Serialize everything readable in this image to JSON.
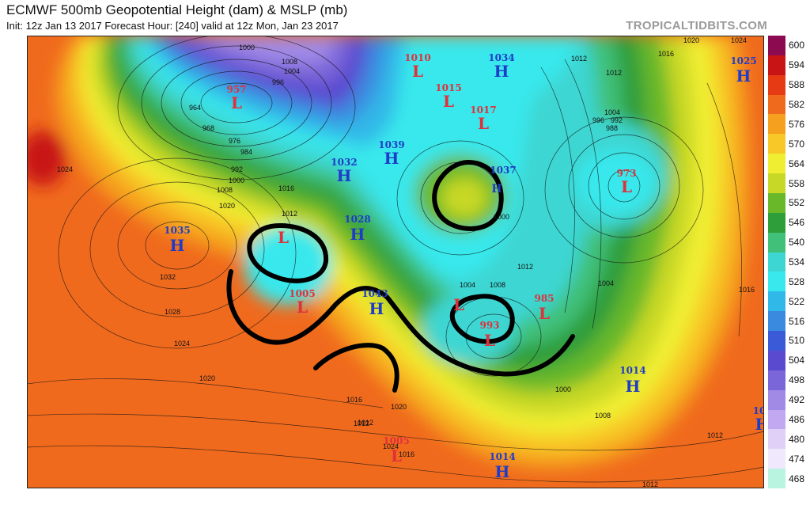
{
  "header": {
    "title": "ECMWF 500mb Geopotential Height (dam) & MSLP (mb)",
    "subtitle": "Init: 12z Jan 13 2017   Forecast Hour: [240]   valid at 12z Mon, Jan 23 2017",
    "brand": "TROPICALTIDBITS.COM"
  },
  "colorbar": {
    "levels": [
      "600",
      "594",
      "588",
      "582",
      "576",
      "570",
      "564",
      "558",
      "552",
      "546",
      "540",
      "534",
      "528",
      "522",
      "516",
      "510",
      "504",
      "498",
      "492",
      "486",
      "480",
      "474",
      "468"
    ],
    "colors": [
      "#8b0a50",
      "#c81414",
      "#e63a14",
      "#f06a1e",
      "#f5a01e",
      "#f8c828",
      "#f0ee32",
      "#c8d826",
      "#68b82a",
      "#2e9e3a",
      "#40c078",
      "#3ed6d2",
      "#38e8ec",
      "#30b8e8",
      "#3a8ae0",
      "#3a5ad8",
      "#5a4ad0",
      "#7a66d8",
      "#a08ae6",
      "#c2a8f0",
      "#e0d0f8",
      "#f0e8fc",
      "#b8f4e0"
    ]
  },
  "pressure_centers": [
    {
      "type": "L",
      "value": "957"
    },
    {
      "type": "L",
      "value": "1010"
    },
    {
      "type": "H",
      "value": "1034"
    },
    {
      "type": "L",
      "value": "1015"
    },
    {
      "type": "L",
      "value": "1017"
    },
    {
      "type": "H",
      "value": "1025"
    },
    {
      "type": "H",
      "value": "1039"
    },
    {
      "type": "H",
      "value": "1032"
    },
    {
      "type": "H",
      "value": "1037"
    },
    {
      "type": "L",
      "value": "973"
    },
    {
      "type": "H",
      "value": "1035"
    },
    {
      "type": "H",
      "value": "1028"
    },
    {
      "type": "L",
      "value": ""
    },
    {
      "type": "L",
      "value": "1005"
    },
    {
      "type": "H",
      "value": "1043"
    },
    {
      "type": "L",
      "value": ""
    },
    {
      "type": "L",
      "value": "993"
    },
    {
      "type": "L",
      "value": "985"
    },
    {
      "type": "H",
      "value": "1014"
    },
    {
      "type": "L",
      "value": "1005"
    },
    {
      "type": "H",
      "value": "1014"
    },
    {
      "type": "H",
      "value": "10"
    }
  ],
  "isobar_labels": [
    "1000",
    "1008",
    "1004",
    "996",
    "964",
    "968",
    "976",
    "984",
    "992",
    "1000",
    "1008",
    "1016",
    "1012",
    "1024",
    "1020",
    "1032",
    "1028",
    "1024",
    "1020",
    "1016",
    "1012",
    "1020",
    "1024",
    "1012",
    "1016",
    "1020",
    "1024",
    "1012",
    "1004",
    "996",
    "992",
    "988",
    "1004",
    "1016",
    "1000",
    "1008",
    "1012",
    "1000",
    "1004",
    "1008",
    "1012",
    "1016",
    "1012",
    "1012"
  ]
}
